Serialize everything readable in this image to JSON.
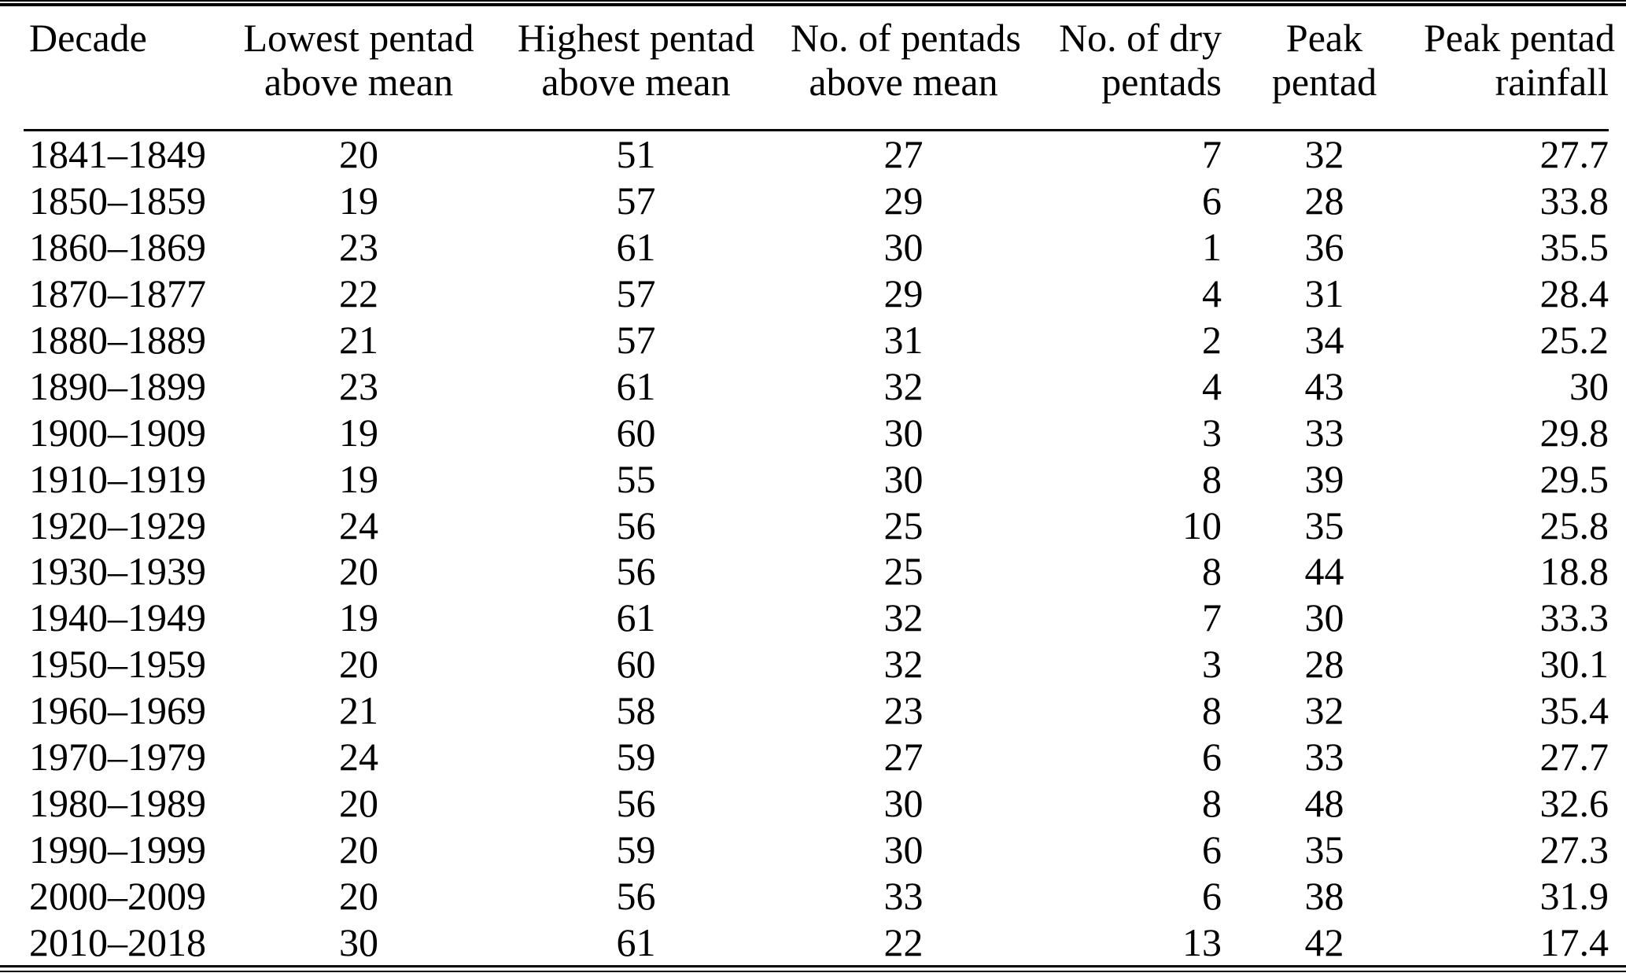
{
  "colors": {
    "background": "#ffffff",
    "text": "#000000",
    "rule": "#000000"
  },
  "table": {
    "columns": [
      {
        "key": "decade",
        "line1": "Decade",
        "line2": "",
        "align": "left"
      },
      {
        "key": "lowest-pentad",
        "line1": "Lowest pentad",
        "line2": "above mean",
        "align": "center"
      },
      {
        "key": "highest-pentad",
        "line1": "Highest pentad",
        "line2": "above mean",
        "align": "center"
      },
      {
        "key": "pentads-above-mean",
        "line1": "No. of pentads",
        "line2": "above mean",
        "align": "center"
      },
      {
        "key": "dry-pentads",
        "line1": "No. of dry",
        "line2": "pentads",
        "align": "right"
      },
      {
        "key": "peak-pentad",
        "line1": "Peak",
        "line2": "pentad",
        "align": "center"
      },
      {
        "key": "peak-rainfall",
        "line1": "Peak pentad",
        "line2": "rainfall",
        "align": "right"
      }
    ],
    "rows": [
      {
        "cells": [
          "1841–1849",
          "20",
          "51",
          "27",
          "7",
          "32",
          "27.7"
        ]
      },
      {
        "cells": [
          "1850–1859",
          "19",
          "57",
          "29",
          "6",
          "28",
          "33.8"
        ]
      },
      {
        "cells": [
          "1860–1869",
          "23",
          "61",
          "30",
          "1",
          "36",
          "35.5"
        ]
      },
      {
        "cells": [
          "1870–1877",
          "22",
          "57",
          "29",
          "4",
          "31",
          "28.4"
        ]
      },
      {
        "cells": [
          "1880–1889",
          "21",
          "57",
          "31",
          "2",
          "34",
          "25.2"
        ]
      },
      {
        "cells": [
          "1890–1899",
          "23",
          "61",
          "32",
          "4",
          "43",
          "30"
        ]
      },
      {
        "cells": [
          "1900–1909",
          "19",
          "60",
          "30",
          "3",
          "33",
          "29.8"
        ]
      },
      {
        "cells": [
          "1910–1919",
          "19",
          "55",
          "30",
          "8",
          "39",
          "29.5"
        ]
      },
      {
        "cells": [
          "1920–1929",
          "24",
          "56",
          "25",
          "10",
          "35",
          "25.8"
        ]
      },
      {
        "cells": [
          "1930–1939",
          "20",
          "56",
          "25",
          "8",
          "44",
          "18.8"
        ]
      },
      {
        "cells": [
          "1940–1949",
          "19",
          "61",
          "32",
          "7",
          "30",
          "33.3"
        ]
      },
      {
        "cells": [
          "1950–1959",
          "20",
          "60",
          "32",
          "3",
          "28",
          "30.1"
        ]
      },
      {
        "cells": [
          "1960–1969",
          "21",
          "58",
          "23",
          "8",
          "32",
          "35.4"
        ]
      },
      {
        "cells": [
          "1970–1979",
          "24",
          "59",
          "27",
          "6",
          "33",
          "27.7"
        ]
      },
      {
        "cells": [
          "1980–1989",
          "20",
          "56",
          "30",
          "8",
          "48",
          "32.6"
        ]
      },
      {
        "cells": [
          "1990–1999",
          "20",
          "59",
          "30",
          "6",
          "35",
          "27.3"
        ]
      },
      {
        "cells": [
          "2000–2009",
          "20",
          "56",
          "33",
          "6",
          "38",
          "31.9"
        ]
      },
      {
        "cells": [
          "2010–2018",
          "30",
          "61",
          "22",
          "13",
          "42",
          "17.4"
        ]
      }
    ]
  },
  "chart_data": {
    "type": "table",
    "title": "",
    "columns": [
      "Decade",
      "Lowest pentad above mean",
      "Highest pentad above mean",
      "No. of pentads above mean",
      "No. of dry pentads",
      "Peak pentad",
      "Peak pentad rainfall"
    ],
    "rows": [
      [
        "1841–1849",
        20,
        51,
        27,
        7,
        32,
        27.7
      ],
      [
        "1850–1859",
        19,
        57,
        29,
        6,
        28,
        33.8
      ],
      [
        "1860–1869",
        23,
        61,
        30,
        1,
        36,
        35.5
      ],
      [
        "1870–1877",
        22,
        57,
        29,
        4,
        31,
        28.4
      ],
      [
        "1880–1889",
        21,
        57,
        31,
        2,
        34,
        25.2
      ],
      [
        "1890–1899",
        23,
        61,
        32,
        4,
        43,
        30
      ],
      [
        "1900–1909",
        19,
        60,
        30,
        3,
        33,
        29.8
      ],
      [
        "1910–1919",
        19,
        55,
        30,
        8,
        39,
        29.5
      ],
      [
        "1920–1929",
        24,
        56,
        25,
        10,
        35,
        25.8
      ],
      [
        "1930–1939",
        20,
        56,
        25,
        8,
        44,
        18.8
      ],
      [
        "1940–1949",
        19,
        61,
        32,
        7,
        30,
        33.3
      ],
      [
        "1950–1959",
        20,
        60,
        32,
        3,
        28,
        30.1
      ],
      [
        "1960–1969",
        21,
        58,
        23,
        8,
        32,
        35.4
      ],
      [
        "1970–1979",
        24,
        59,
        27,
        6,
        33,
        27.7
      ],
      [
        "1980–1989",
        20,
        56,
        30,
        8,
        48,
        32.6
      ],
      [
        "1990–1999",
        20,
        59,
        30,
        6,
        35,
        27.3
      ],
      [
        "2000–2009",
        20,
        56,
        33,
        6,
        38,
        31.9
      ],
      [
        "2010–2018",
        30,
        61,
        22,
        13,
        42,
        17.4
      ]
    ]
  }
}
